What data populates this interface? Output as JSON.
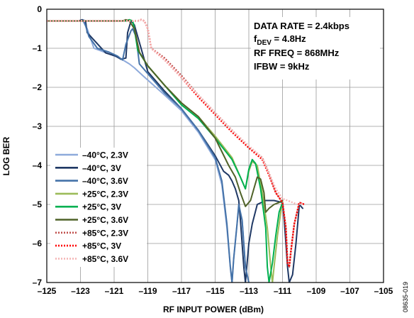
{
  "figure_id": "08635-019",
  "chart_data": {
    "type": "line",
    "xlabel": "RF INPUT POWER (dBm)",
    "ylabel": "LOG BER",
    "xlim": [
      -125,
      -105
    ],
    "ylim": [
      -7,
      0
    ],
    "xticks": [
      -125,
      -123,
      -121,
      -119,
      -117,
      -115,
      -113,
      -111,
      -109,
      -107,
      -105
    ],
    "yticks": [
      0,
      -1,
      -2,
      -3,
      -4,
      -5,
      -6,
      -7
    ],
    "xtick_labels": [
      "–125",
      "–123",
      "–121",
      "–119",
      "–117",
      "–115",
      "–113",
      "–111",
      "–109",
      "–107",
      "–105"
    ],
    "ytick_labels": [
      "0",
      "–1",
      "–2",
      "–3",
      "–4",
      "–5",
      "–6",
      "–7"
    ],
    "grid": true,
    "legend_position": "bottom-left",
    "annotations": [
      {
        "text": "DATA RATE = 2.4kbps"
      },
      {
        "text": "f",
        "sub": "DEV",
        "rest": " = 4.8Hz"
      },
      {
        "text": "RF FREQ = 868MHz"
      },
      {
        "text": "IFBW = 9kHz"
      }
    ],
    "series": [
      {
        "name": "–40°C, 2.3V",
        "color": "#8eaadb",
        "style": "solid",
        "x": [
          -125,
          -123.1,
          -122.9,
          -122.6,
          -122.2,
          -121.4,
          -120.8,
          -120.4,
          -120.1,
          -119.8,
          -119.3,
          -118,
          -117,
          -116,
          -115,
          -114.6,
          -114.3,
          -114.1,
          -114.0,
          -113.9,
          -113.7,
          -113.6,
          -113.4,
          -113.3,
          -113.2,
          -113.0
        ],
        "y": [
          -0.3,
          -0.3,
          -0.27,
          -0.5,
          -1.0,
          -1.13,
          -1.23,
          -1.32,
          -1.4,
          -1.5,
          -1.7,
          -2.2,
          -2.6,
          -3.15,
          -3.85,
          -4.5,
          -5.6,
          -6.6,
          -7.0,
          -6.4,
          -5.5,
          -5.05,
          -5.4,
          -6.0,
          -6.6,
          -7.0
        ]
      },
      {
        "name": "–40°C, 3V",
        "color": "#1f3864",
        "style": "solid",
        "x": [
          -125,
          -123.1,
          -122.9,
          -122.7,
          -122.6,
          -121.5,
          -120.9,
          -120.6,
          -120.3,
          -120.2,
          -120,
          -119.8,
          -119,
          -118,
          -117,
          -116,
          -115,
          -114.5,
          -114.2,
          -114.0,
          -113.8,
          -113.6,
          -113.5,
          -113.4,
          -113.3,
          -113.2,
          -113.1,
          -113.0,
          -112.8,
          -112.5,
          -112,
          -111.5,
          -111,
          -110.9,
          -110.8,
          -110.7,
          -110.6,
          -110.4,
          -110.3,
          -110.2,
          -110.1,
          -110.0,
          -109.9,
          -109.8
        ],
        "y": [
          -0.3,
          -0.3,
          -0.27,
          -0.3,
          -0.6,
          -1.12,
          -1.2,
          -1.28,
          -1.25,
          -0.6,
          -0.3,
          -0.4,
          -1.6,
          -2.1,
          -2.55,
          -3.1,
          -3.75,
          -4.15,
          -4.25,
          -4.4,
          -4.6,
          -4.9,
          -5.4,
          -6.0,
          -6.6,
          -7.0,
          -6.5,
          -6.0,
          -5.5,
          -5.0,
          -4.9,
          -4.9,
          -4.95,
          -5.4,
          -6.0,
          -6.6,
          -7.0,
          -6.8,
          -6.4,
          -6.0,
          -5.5,
          -5.0,
          -5.05,
          -5.1
        ]
      },
      {
        "name": "–40°C, 3.6V",
        "color": "#4472a8",
        "style": "solid",
        "x": [
          -125,
          -123.2,
          -123.0,
          -122.8,
          -122.5,
          -122,
          -121.3,
          -120.8,
          -120.5,
          -120.3,
          -120.0,
          -119.9,
          -119.7,
          -119.5,
          -119,
          -118,
          -117,
          -116,
          -115,
          -114.6,
          -114.3,
          -114.1,
          -114.0,
          -113.9,
          -113.7,
          -113.6,
          -113.4,
          -113.3,
          -113.2,
          -113.0
        ],
        "y": [
          -0.3,
          -0.3,
          -0.3,
          -0.28,
          -0.7,
          -1.0,
          -1.1,
          -1.2,
          -1.3,
          -0.9,
          -0.55,
          -0.5,
          -0.7,
          -1.4,
          -1.65,
          -2.15,
          -2.55,
          -3.1,
          -3.8,
          -4.4,
          -5.5,
          -6.6,
          -7.0,
          -6.4,
          -5.5,
          -5.0,
          -5.4,
          -6.0,
          -6.6,
          -7.0
        ]
      },
      {
        "name": "+25°C, 2.3V",
        "color": "#9bbb59",
        "style": "solid",
        "x": [
          -125,
          -120.3,
          -120.1,
          -119.9,
          -119.8,
          -119.5,
          -119,
          -118,
          -117,
          -116,
          -115,
          -114,
          -113.5,
          -113.2,
          -113.0,
          -112.8,
          -112.5,
          -112.2,
          -111.9,
          -111.7,
          -111.6,
          -111.5,
          -111.3,
          -111.1,
          -111.0
        ],
        "y": [
          -0.3,
          -0.3,
          -0.27,
          -0.3,
          -0.5,
          -1.1,
          -1.45,
          -1.95,
          -2.4,
          -2.75,
          -3.25,
          -3.8,
          -4.3,
          -4.6,
          -4.15,
          -3.9,
          -4.0,
          -4.7,
          -5.6,
          -6.6,
          -7.0,
          -6.6,
          -5.8,
          -5.2,
          -4.9
        ]
      },
      {
        "name": "+25°C, 3V",
        "color": "#00b050",
        "style": "solid",
        "x": [
          -125,
          -120.3,
          -120.1,
          -119.9,
          -119.8,
          -119.6,
          -119,
          -118,
          -117,
          -116,
          -115,
          -114,
          -113.5,
          -113.2,
          -113.0,
          -112.8,
          -112.6,
          -112.3,
          -112.0,
          -111.9,
          -111.8,
          -111.6,
          -111.4,
          -111.2,
          -111.0
        ],
        "y": [
          -0.3,
          -0.3,
          -0.27,
          -0.3,
          -0.5,
          -1.05,
          -1.45,
          -1.95,
          -2.45,
          -2.8,
          -3.3,
          -3.85,
          -4.3,
          -4.6,
          -4.1,
          -3.85,
          -3.95,
          -4.6,
          -5.6,
          -6.6,
          -7.0,
          -6.5,
          -5.8,
          -5.2,
          -4.95
        ]
      },
      {
        "name": "+25°C, 3.6V",
        "color": "#4f6228",
        "style": "solid",
        "x": [
          -125,
          -120.5,
          -120.3,
          -120.1,
          -119.8,
          -119.5,
          -119,
          -118,
          -117,
          -116,
          -115,
          -114.2,
          -113.8,
          -113.5,
          -113.2,
          -112.9,
          -112.7,
          -112.5,
          -112.3,
          -112.1,
          -112.0,
          -111.8,
          -111.5,
          -111.2,
          -111.0
        ],
        "y": [
          -0.3,
          -0.3,
          -0.27,
          -0.3,
          -0.5,
          -1.1,
          -1.45,
          -1.95,
          -2.4,
          -2.75,
          -3.3,
          -4.0,
          -4.3,
          -4.7,
          -5.05,
          -4.9,
          -4.6,
          -4.3,
          -4.35,
          -4.7,
          -5.2,
          -5.1,
          -5.0,
          -4.95,
          -4.9
        ]
      },
      {
        "name": "+85°C, 2.3V",
        "color": "#c0504d",
        "style": "dotted",
        "x": [
          -125,
          -119.6,
          -119.4,
          -119.2,
          -119.0,
          -118.8,
          -118,
          -117,
          -116,
          -115,
          -114,
          -113,
          -112.2,
          -111.8,
          -111.4,
          -111.0,
          -110.8,
          -110.7,
          -110.6,
          -110.5,
          -110.3,
          -110.0,
          -109.7
        ],
        "y": [
          -0.3,
          -0.3,
          -0.27,
          -0.3,
          -0.5,
          -1.0,
          -1.25,
          -1.7,
          -2.2,
          -2.65,
          -3.1,
          -3.55,
          -3.8,
          -4.2,
          -4.7,
          -4.95,
          -5.6,
          -6.5,
          -6.6,
          -6.2,
          -5.5,
          -4.95,
          -5.0
        ]
      },
      {
        "name": "+85°C, 3V",
        "color": "#ff0000",
        "style": "dotted",
        "x": [
          -125,
          -119.6,
          -119.4,
          -119.2,
          -119.0,
          -118.8,
          -118,
          -117,
          -116,
          -115,
          -114,
          -113,
          -112.2,
          -111.8,
          -111.4,
          -111.0,
          -110.8,
          -110.7,
          -110.6,
          -110.5,
          -110.3,
          -110.0,
          -109.7
        ],
        "y": [
          -0.3,
          -0.3,
          -0.27,
          -0.3,
          -0.5,
          -1.0,
          -1.3,
          -1.75,
          -2.25,
          -2.7,
          -3.15,
          -3.55,
          -3.85,
          -4.25,
          -4.7,
          -4.95,
          -5.6,
          -6.5,
          -6.6,
          -6.2,
          -5.5,
          -4.95,
          -5.0
        ]
      },
      {
        "name": "+85°C, 3.6V",
        "color": "#f4b6b6",
        "style": "dotted",
        "x": [
          -125,
          -119.6,
          -119.4,
          -119.2,
          -119.0,
          -118.8,
          -118,
          -117,
          -116,
          -115,
          -114,
          -113,
          -112.2,
          -111.8,
          -111.4,
          -111.0,
          -110.7,
          -110.4,
          -110.1,
          -109.8
        ],
        "y": [
          -0.3,
          -0.3,
          -0.27,
          -0.3,
          -0.5,
          -1.0,
          -1.3,
          -1.75,
          -2.2,
          -2.65,
          -3.1,
          -3.5,
          -3.8,
          -4.2,
          -4.6,
          -4.85,
          -4.9,
          -4.95,
          -5.0,
          -4.98
        ]
      }
    ]
  }
}
